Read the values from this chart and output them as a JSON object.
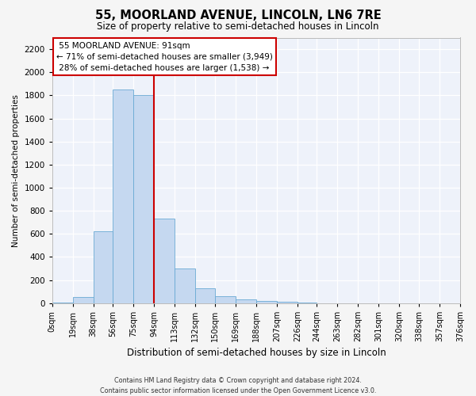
{
  "title": "55, MOORLAND AVENUE, LINCOLN, LN6 7RE",
  "subtitle": "Size of property relative to semi-detached houses in Lincoln",
  "xlabel": "Distribution of semi-detached houses by size in Lincoln",
  "ylabel": "Number of semi-detached properties",
  "property_label": "55 MOORLAND AVENUE: 91sqm",
  "pct_smaller": 71,
  "pct_larger": 28,
  "n_smaller": "3,949",
  "n_larger": "1,538",
  "bin_edges": [
    0,
    19,
    38,
    56,
    75,
    94,
    113,
    132,
    150,
    169,
    188,
    207,
    226,
    244,
    263,
    282,
    301,
    320,
    338,
    357,
    376
  ],
  "bin_labels": [
    "0sqm",
    "19sqm",
    "38sqm",
    "56sqm",
    "75sqm",
    "94sqm",
    "113sqm",
    "132sqm",
    "150sqm",
    "169sqm",
    "188sqm",
    "207sqm",
    "226sqm",
    "244sqm",
    "263sqm",
    "282sqm",
    "301sqm",
    "320sqm",
    "338sqm",
    "357sqm",
    "376sqm"
  ],
  "bar_heights": [
    5,
    50,
    625,
    1850,
    1800,
    730,
    300,
    130,
    60,
    35,
    20,
    10,
    5,
    0,
    0,
    0,
    0,
    0,
    0,
    0
  ],
  "bar_color": "#c5d8f0",
  "bar_edge_color": "#6aaad4",
  "vline_color": "#cc0000",
  "vline_x": 94,
  "annotation_box_color": "#cc0000",
  "plot_bg_color": "#eef2fa",
  "fig_bg_color": "#f5f5f5",
  "grid_color": "#ffffff",
  "ylim": [
    0,
    2300
  ],
  "yticks": [
    0,
    200,
    400,
    600,
    800,
    1000,
    1200,
    1400,
    1600,
    1800,
    2000,
    2200
  ],
  "footer_line1": "Contains HM Land Registry data © Crown copyright and database right 2024.",
  "footer_line2": "Contains public sector information licensed under the Open Government Licence v3.0."
}
